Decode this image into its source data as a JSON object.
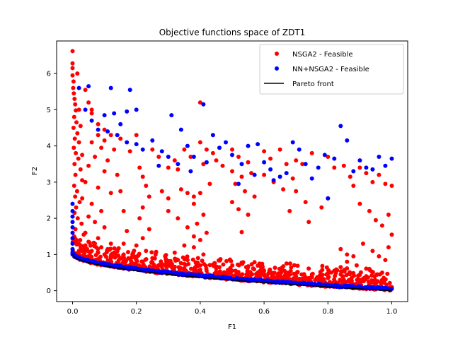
{
  "chart_data": {
    "type": "scatter",
    "title": "Objective functions space of ZDT1",
    "xlabel": "F1",
    "ylabel": "F2",
    "xlim": [
      -0.05,
      1.05
    ],
    "ylim": [
      -0.3,
      6.9
    ],
    "xticks": [
      0.0,
      0.2,
      0.4,
      0.6,
      0.8,
      1.0
    ],
    "xtick_labels": [
      "0.0",
      "0.2",
      "0.4",
      "0.6",
      "0.8",
      "1.0"
    ],
    "yticks": [
      0,
      1,
      2,
      3,
      4,
      5,
      6
    ],
    "ytick_labels": [
      "0",
      "1",
      "2",
      "3",
      "4",
      "5",
      "6"
    ],
    "grid": false,
    "legend_position": "top-right",
    "series": [
      {
        "name": "NSGA2 - Feasible",
        "color": "#ff0000",
        "marker": "circle",
        "points": [
          [
            0.0,
            6.62
          ],
          [
            0.0,
            6.28
          ],
          [
            0.0,
            6.15
          ],
          [
            0.0,
            5.95
          ],
          [
            0.003,
            5.78
          ],
          [
            0.002,
            5.6
          ],
          [
            0.004,
            5.45
          ],
          [
            0.006,
            5.3
          ],
          [
            0.008,
            5.15
          ],
          [
            0.01,
            4.98
          ],
          [
            0.005,
            4.8
          ],
          [
            0.012,
            4.65
          ],
          [
            0.003,
            4.5
          ],
          [
            0.015,
            4.35
          ],
          [
            0.007,
            4.2
          ],
          [
            0.02,
            4.1
          ],
          [
            0.004,
            3.95
          ],
          [
            0.01,
            3.8
          ],
          [
            0.018,
            3.65
          ],
          [
            0.006,
            3.5
          ],
          [
            0.025,
            3.35
          ],
          [
            0.009,
            3.2
          ],
          [
            0.03,
            3.05
          ],
          [
            0.005,
            2.9
          ],
          [
            0.014,
            2.75
          ],
          [
            0.008,
            2.6
          ],
          [
            0.022,
            2.45
          ],
          [
            0.011,
            2.3
          ],
          [
            0.006,
            2.15
          ],
          [
            0.016,
            2.0
          ],
          [
            0.028,
            1.85
          ],
          [
            0.009,
            1.7
          ],
          [
            0.035,
            1.55
          ],
          [
            0.012,
            1.4
          ],
          [
            0.04,
            1.25
          ],
          [
            0.02,
            1.1
          ],
          [
            0.05,
            5.2
          ],
          [
            0.06,
            4.9
          ],
          [
            0.08,
            4.6
          ],
          [
            0.1,
            4.45
          ],
          [
            0.12,
            4.3
          ],
          [
            0.15,
            4.2
          ],
          [
            0.06,
            4.1
          ],
          [
            0.09,
            3.95
          ],
          [
            0.13,
            3.9
          ],
          [
            0.18,
            3.85
          ],
          [
            0.03,
            3.75
          ],
          [
            0.07,
            3.7
          ],
          [
            0.11,
            3.6
          ],
          [
            0.05,
            3.45
          ],
          [
            0.1,
            3.3
          ],
          [
            0.14,
            3.2
          ],
          [
            0.04,
            3.0
          ],
          [
            0.08,
            2.85
          ],
          [
            0.12,
            2.7
          ],
          [
            0.03,
            2.55
          ],
          [
            0.06,
            2.4
          ],
          [
            0.09,
            2.2
          ],
          [
            0.05,
            2.05
          ],
          [
            0.07,
            1.9
          ],
          [
            0.1,
            1.75
          ],
          [
            0.04,
            1.6
          ],
          [
            0.08,
            1.45
          ],
          [
            0.12,
            1.3
          ],
          [
            0.15,
            2.75
          ],
          [
            0.16,
            2.2
          ],
          [
            0.17,
            1.65
          ],
          [
            0.16,
            1.3
          ],
          [
            0.19,
            1.05
          ],
          [
            0.02,
            5.0
          ],
          [
            0.04,
            5.55
          ],
          [
            0.015,
            6.0
          ],
          [
            0.025,
            4.55
          ],
          [
            0.06,
            5.0
          ],
          [
            0.08,
            4.3
          ],
          [
            0.1,
            4.15
          ],
          [
            0.2,
            4.3
          ],
          [
            0.21,
            3.4
          ],
          [
            0.22,
            3.15
          ],
          [
            0.23,
            2.9
          ],
          [
            0.24,
            2.6
          ],
          [
            0.22,
            2.3
          ],
          [
            0.21,
            2.0
          ],
          [
            0.24,
            1.7
          ],
          [
            0.22,
            1.45
          ],
          [
            0.2,
            1.25
          ],
          [
            0.23,
            1.1
          ],
          [
            0.25,
            3.9
          ],
          [
            0.27,
            3.7
          ],
          [
            0.3,
            3.4
          ],
          [
            0.32,
            3.6
          ],
          [
            0.35,
            3.9
          ],
          [
            0.37,
            3.7
          ],
          [
            0.33,
            3.35
          ],
          [
            0.28,
            2.75
          ],
          [
            0.3,
            2.55
          ],
          [
            0.34,
            2.8
          ],
          [
            0.36,
            2.7
          ],
          [
            0.38,
            2.6
          ],
          [
            0.3,
            2.2
          ],
          [
            0.33,
            2.0
          ],
          [
            0.36,
            1.75
          ],
          [
            0.38,
            1.5
          ],
          [
            0.35,
            1.25
          ],
          [
            0.32,
            1.05
          ],
          [
            0.4,
            5.2
          ],
          [
            0.4,
            4.1
          ],
          [
            0.42,
            3.9
          ],
          [
            0.44,
            3.8
          ],
          [
            0.41,
            3.5
          ],
          [
            0.45,
            3.6
          ],
          [
            0.47,
            3.45
          ],
          [
            0.43,
            2.95
          ],
          [
            0.4,
            2.7
          ],
          [
            0.38,
            2.4
          ],
          [
            0.41,
            2.1
          ],
          [
            0.39,
            1.85
          ],
          [
            0.42,
            1.6
          ],
          [
            0.4,
            1.4
          ],
          [
            0.38,
            1.2
          ],
          [
            0.41,
            1.0
          ],
          [
            0.5,
            3.9
          ],
          [
            0.52,
            3.7
          ],
          [
            0.55,
            3.55
          ],
          [
            0.5,
            3.3
          ],
          [
            0.53,
            3.15
          ],
          [
            0.56,
            3.25
          ],
          [
            0.51,
            2.95
          ],
          [
            0.54,
            2.75
          ],
          [
            0.57,
            2.6
          ],
          [
            0.5,
            2.45
          ],
          [
            0.52,
            2.25
          ],
          [
            0.55,
            2.1
          ],
          [
            0.53,
            1.62
          ],
          [
            0.6,
            3.85
          ],
          [
            0.62,
            3.65
          ],
          [
            0.65,
            3.9
          ],
          [
            0.67,
            3.5
          ],
          [
            0.6,
            3.2
          ],
          [
            0.63,
            3.0
          ],
          [
            0.66,
            2.8
          ],
          [
            0.69,
            3.1
          ],
          [
            0.7,
            3.6
          ],
          [
            0.72,
            3.5
          ],
          [
            0.75,
            3.8
          ],
          [
            0.7,
            2.75
          ],
          [
            0.73,
            2.45
          ],
          [
            0.68,
            2.2
          ],
          [
            0.74,
            1.9
          ],
          [
            0.8,
            3.7
          ],
          [
            0.82,
            3.4
          ],
          [
            0.85,
            3.45
          ],
          [
            0.87,
            3.15
          ],
          [
            0.8,
            2.55
          ],
          [
            0.78,
            2.3
          ],
          [
            0.88,
            2.9
          ],
          [
            0.9,
            3.4
          ],
          [
            0.92,
            3.25
          ],
          [
            0.94,
            3.0
          ],
          [
            0.96,
            3.2
          ],
          [
            0.98,
            2.95
          ],
          [
            1.0,
            2.9
          ],
          [
            0.9,
            2.4
          ],
          [
            0.93,
            2.2
          ],
          [
            0.95,
            1.95
          ],
          [
            0.97,
            1.8
          ],
          [
            0.99,
            2.1
          ],
          [
            1.0,
            1.55
          ],
          [
            0.91,
            1.3
          ],
          [
            0.94,
            1.1
          ],
          [
            0.96,
            0.95
          ],
          [
            0.98,
            0.85
          ],
          [
            0.99,
            1.2
          ],
          [
            0.88,
            0.95
          ],
          [
            0.86,
            0.8
          ],
          [
            0.84,
            0.65
          ],
          [
            0.82,
            0.55
          ],
          [
            0.8,
            0.48
          ],
          [
            0.78,
            0.42
          ],
          [
            0.75,
            0.38
          ],
          [
            0.72,
            0.33
          ],
          [
            0.7,
            0.3
          ],
          [
            0.68,
            0.32
          ],
          [
            0.65,
            0.36
          ],
          [
            0.62,
            0.3
          ],
          [
            0.6,
            0.28
          ],
          [
            0.58,
            0.33
          ],
          [
            0.55,
            0.35
          ],
          [
            0.52,
            0.4
          ],
          [
            0.5,
            0.42
          ],
          [
            0.48,
            0.45
          ],
          [
            0.45,
            0.5
          ],
          [
            0.42,
            0.55
          ],
          [
            0.4,
            0.58
          ],
          [
            0.38,
            0.6
          ],
          [
            0.35,
            0.62
          ],
          [
            0.32,
            0.66
          ],
          [
            0.3,
            0.7
          ],
          [
            0.28,
            0.72
          ],
          [
            0.25,
            0.78
          ],
          [
            0.22,
            0.8
          ],
          [
            0.2,
            0.85
          ],
          [
            0.18,
            0.88
          ],
          [
            0.15,
            0.9
          ],
          [
            0.12,
            0.95
          ],
          [
            0.1,
            1.0
          ],
          [
            0.08,
            1.05
          ],
          [
            0.06,
            1.1
          ],
          [
            0.04,
            1.15
          ],
          [
            0.03,
            1.2
          ],
          [
            0.25,
            0.9
          ],
          [
            0.3,
            0.82
          ],
          [
            0.35,
            0.74
          ],
          [
            0.4,
            0.7
          ],
          [
            0.45,
            0.62
          ],
          [
            0.5,
            0.55
          ],
          [
            0.55,
            0.48
          ],
          [
            0.6,
            0.42
          ],
          [
            0.65,
            0.45
          ],
          [
            0.7,
            0.4
          ],
          [
            0.75,
            0.45
          ],
          [
            0.8,
            0.35
          ],
          [
            0.85,
            0.3
          ],
          [
            0.9,
            0.25
          ],
          [
            0.95,
            0.2
          ],
          [
            1.0,
            0.1
          ],
          [
            0.97,
            0.5
          ],
          [
            0.93,
            0.6
          ],
          [
            0.89,
            0.7
          ],
          [
            0.86,
            1.0
          ],
          [
            0.84,
            1.15
          ],
          [
            0.92,
            0.4
          ],
          [
            0.14,
            1.1
          ],
          [
            0.16,
            1.0
          ],
          [
            0.26,
            1.0
          ],
          [
            0.29,
            0.95
          ],
          [
            0.33,
            0.85
          ],
          [
            0.36,
            0.85
          ],
          [
            0.44,
            0.72
          ],
          [
            0.46,
            0.65
          ],
          [
            0.05,
            1.35
          ],
          [
            0.07,
            1.3
          ],
          [
            0.09,
            1.2
          ],
          [
            0.11,
            1.15
          ],
          [
            0.13,
            1.05
          ]
        ]
      },
      {
        "name": "NN+NSGA2 - Feasible",
        "color": "#0000ff",
        "marker": "circle",
        "points": [
          [
            0.0,
            2.4
          ],
          [
            0.0,
            2.2
          ],
          [
            0.0,
            2.05
          ],
          [
            0.0,
            1.9
          ],
          [
            0.0,
            1.75
          ],
          [
            0.0,
            1.6
          ],
          [
            0.0,
            1.45
          ],
          [
            0.0,
            1.3
          ],
          [
            0.0,
            1.15
          ],
          [
            0.0,
            1.0
          ],
          [
            0.02,
            5.6
          ],
          [
            0.05,
            5.65
          ],
          [
            0.04,
            5.0
          ],
          [
            0.06,
            4.7
          ],
          [
            0.1,
            4.85
          ],
          [
            0.12,
            5.6
          ],
          [
            0.13,
            4.9
          ],
          [
            0.17,
            4.95
          ],
          [
            0.18,
            5.55
          ],
          [
            0.15,
            4.6
          ],
          [
            0.2,
            5.0
          ],
          [
            0.08,
            4.45
          ],
          [
            0.11,
            4.4
          ],
          [
            0.14,
            4.3
          ],
          [
            0.17,
            4.1
          ],
          [
            0.2,
            4.05
          ],
          [
            0.22,
            3.9
          ],
          [
            0.25,
            4.15
          ],
          [
            0.28,
            3.85
          ],
          [
            0.31,
            4.85
          ],
          [
            0.34,
            4.45
          ],
          [
            0.36,
            4.0
          ],
          [
            0.38,
            3.7
          ],
          [
            0.41,
            5.15
          ],
          [
            0.42,
            3.55
          ],
          [
            0.3,
            3.7
          ],
          [
            0.27,
            3.45
          ],
          [
            0.33,
            3.5
          ],
          [
            0.37,
            3.3
          ],
          [
            0.44,
            4.3
          ],
          [
            0.46,
            3.95
          ],
          [
            0.48,
            4.1
          ],
          [
            0.5,
            3.75
          ],
          [
            0.53,
            3.5
          ],
          [
            0.55,
            4.0
          ],
          [
            0.58,
            4.05
          ],
          [
            0.6,
            3.55
          ],
          [
            0.62,
            3.35
          ],
          [
            0.65,
            3.15
          ],
          [
            0.67,
            3.25
          ],
          [
            0.69,
            4.1
          ],
          [
            0.71,
            3.9
          ],
          [
            0.73,
            3.5
          ],
          [
            0.75,
            3.1
          ],
          [
            0.77,
            3.4
          ],
          [
            0.79,
            3.75
          ],
          [
            0.82,
            3.65
          ],
          [
            0.84,
            4.55
          ],
          [
            0.86,
            4.15
          ],
          [
            0.88,
            3.3
          ],
          [
            0.9,
            3.6
          ],
          [
            0.92,
            3.4
          ],
          [
            0.94,
            3.35
          ],
          [
            0.96,
            3.7
          ],
          [
            0.98,
            3.45
          ],
          [
            1.0,
            3.65
          ],
          [
            0.52,
            2.95
          ],
          [
            0.63,
            3.05
          ],
          [
            0.57,
            3.2
          ],
          [
            0.8,
            2.55
          ]
        ]
      }
    ],
    "pareto_front": {
      "name": "Pareto front",
      "color": "#000000",
      "formula": "f2 = 1 - sqrt(f1)",
      "x_range": [
        0.0,
        1.0
      ]
    },
    "frontier_cloud": {
      "colors": [
        "#ff0000",
        "#0000ff"
      ],
      "x_range": [
        0.0,
        1.0
      ]
    }
  }
}
